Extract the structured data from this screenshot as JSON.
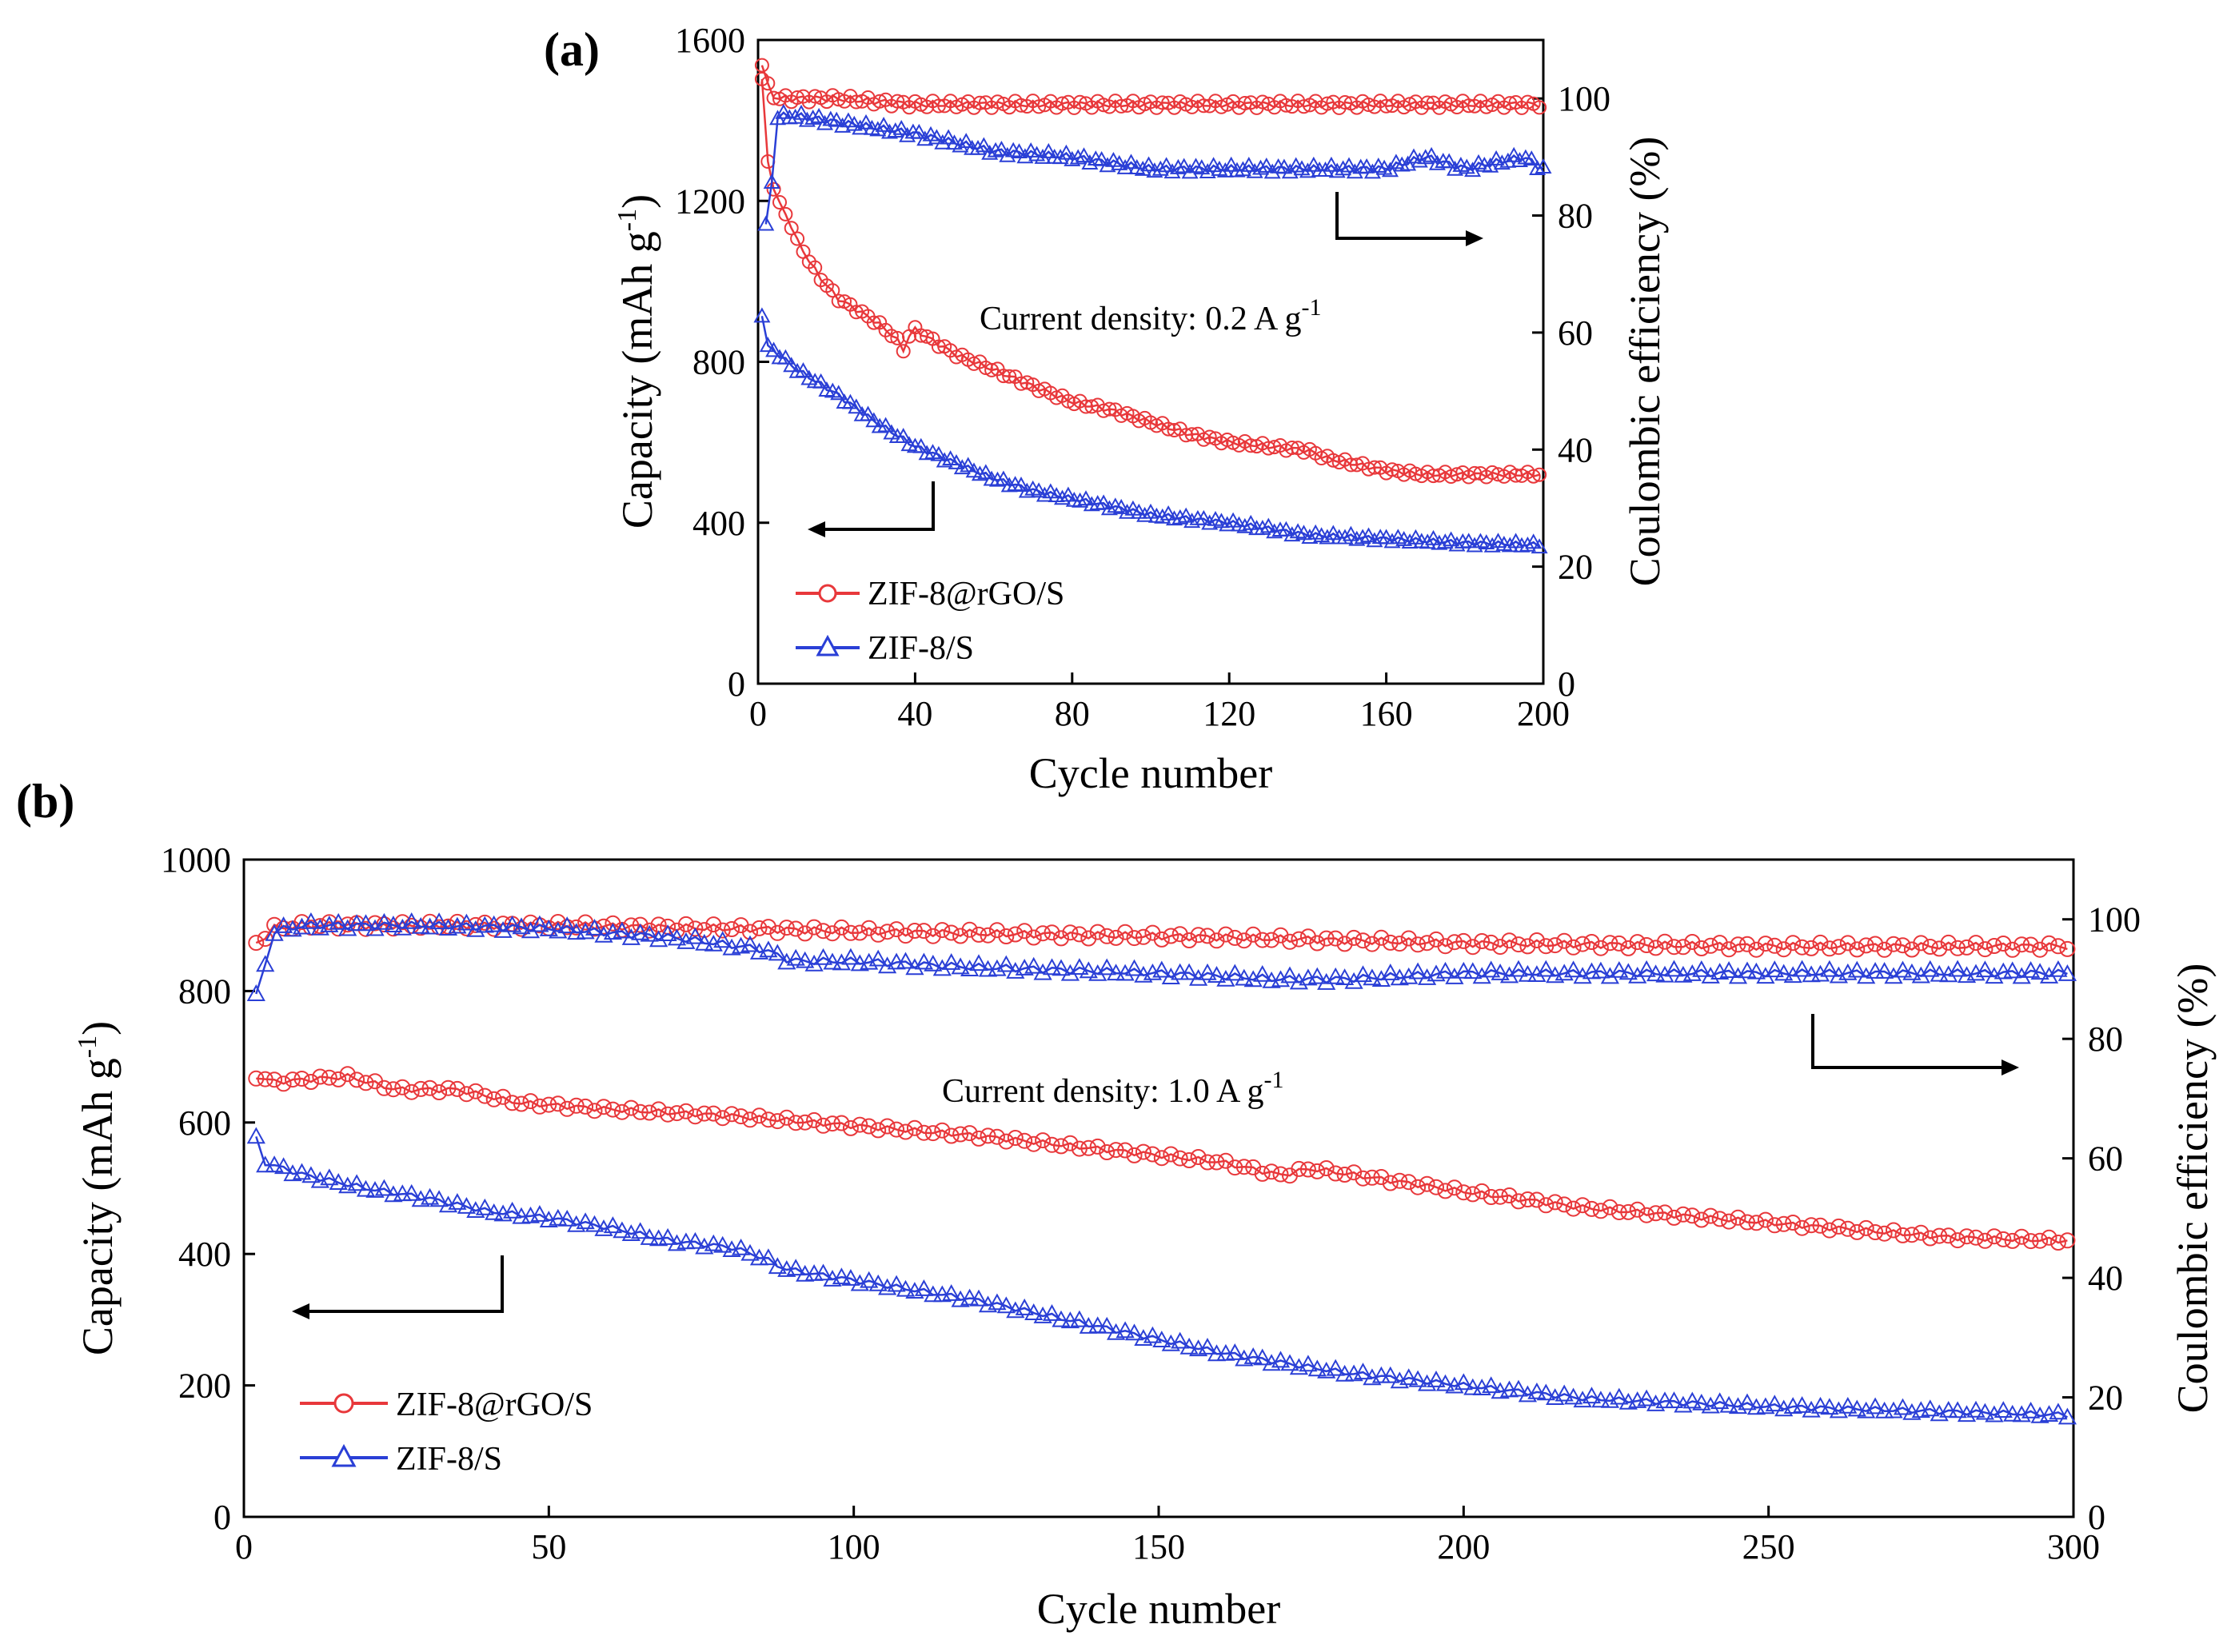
{
  "chart_data": [
    {
      "panel": "(a)",
      "type": "scatter",
      "xlabel": "Cycle number",
      "ylabel": "Capacity (mAh g",
      "ylabel_sup": "-1",
      "ylabel_end": ")",
      "y2label": "Coulombic efficiency (%)",
      "annotation": "Current density: 0.2 A g",
      "annotation_sup": "-1",
      "xlim": [
        0,
        200
      ],
      "ylim": [
        0,
        1600
      ],
      "y2lim": [
        0,
        110
      ],
      "xticks": [
        "0",
        "40",
        "80",
        "120",
        "160",
        "200"
      ],
      "yticks": [
        "0",
        "400",
        "800",
        "1200",
        "1600"
      ],
      "y2ticks": [
        "0",
        "20",
        "40",
        "60",
        "80",
        "100"
      ],
      "legend": [
        {
          "name": "ZIF-8@rGO/S",
          "color": "#e8383b",
          "marker": "circle"
        },
        {
          "name": "ZIF-8/S",
          "color": "#2a3fd6",
          "marker": "triangle"
        }
      ],
      "series": [
        {
          "name": "ZIF-8@rGO/S capacity",
          "axis": "left",
          "color": "#e8383b",
          "marker": "circle",
          "x": [
            1,
            2,
            3,
            5,
            8,
            10,
            15,
            20,
            25,
            30,
            35,
            37,
            38,
            40,
            50,
            60,
            70,
            80,
            90,
            100,
            110,
            120,
            130,
            140,
            145,
            150,
            160,
            170,
            180,
            190,
            200
          ],
          "y": [
            1500,
            1320,
            1270,
            1200,
            1150,
            1100,
            1020,
            960,
            930,
            900,
            860,
            830,
            860,
            880,
            820,
            780,
            740,
            700,
            680,
            650,
            620,
            600,
            590,
            580,
            560,
            550,
            530,
            520,
            520,
            520,
            520
          ]
        },
        {
          "name": "ZIF-8@rGO/S CE",
          "axis": "right",
          "color": "#e8383b",
          "marker": "circle",
          "x": [
            1,
            2,
            3,
            5,
            10,
            20,
            40,
            60,
            80,
            100,
            120,
            140,
            160,
            180,
            200
          ],
          "y": [
            106,
            103,
            101,
            100,
            100,
            100,
            99,
            99,
            99,
            99,
            99,
            99,
            99,
            99,
            99
          ]
        },
        {
          "name": "ZIF-8/S capacity",
          "axis": "left",
          "color": "#2a3fd6",
          "marker": "triangle",
          "x": [
            1,
            2,
            5,
            10,
            20,
            30,
            40,
            50,
            60,
            70,
            80,
            90,
            100,
            120,
            140,
            160,
            180,
            200
          ],
          "y": [
            920,
            840,
            820,
            780,
            720,
            650,
            590,
            550,
            510,
            480,
            460,
            440,
            420,
            400,
            370,
            360,
            350,
            345
          ]
        },
        {
          "name": "ZIF-8/S CE",
          "axis": "right",
          "color": "#2a3fd6",
          "marker": "triangle",
          "x": [
            2,
            3,
            5,
            10,
            20,
            40,
            60,
            80,
            100,
            120,
            140,
            160,
            170,
            180,
            195,
            200
          ],
          "y": [
            78,
            82,
            97,
            97,
            96,
            94,
            91,
            90,
            88,
            88,
            88,
            88,
            90,
            88,
            90,
            88
          ]
        }
      ]
    },
    {
      "panel": "(b)",
      "type": "scatter",
      "xlabel": "Cycle number",
      "ylabel": "Capacity (mAh g",
      "ylabel_sup": "-1",
      "ylabel_end": ")",
      "y2label": "Coulombic efficiency (%)",
      "annotation": "Current density: 1.0 A g",
      "annotation_sup": "-1",
      "xlim": [
        0,
        300
      ],
      "ylim": [
        0,
        1000
      ],
      "y2lim": [
        0,
        110
      ],
      "xticks": [
        "0",
        "50",
        "100",
        "150",
        "200",
        "250",
        "300"
      ],
      "yticks": [
        "0",
        "200",
        "400",
        "600",
        "800",
        "1000"
      ],
      "y2ticks": [
        "0",
        "20",
        "40",
        "60",
        "80",
        "100"
      ],
      "legend": [
        {
          "name": "ZIF-8@rGO/S",
          "color": "#e8383b",
          "marker": "circle"
        },
        {
          "name": "ZIF-8/S",
          "color": "#2a3fd6",
          "marker": "triangle"
        }
      ],
      "series": [
        {
          "name": "ZIF-8@rGO/S capacity",
          "axis": "left",
          "color": "#e8383b",
          "marker": "circle",
          "x": [
            2,
            5,
            10,
            17,
            25,
            35,
            45,
            60,
            80,
            100,
            120,
            140,
            160,
            170,
            175,
            200,
            220,
            240,
            260,
            280,
            300
          ],
          "y": [
            670,
            662,
            665,
            670,
            650,
            650,
            630,
            620,
            610,
            595,
            580,
            560,
            540,
            520,
            530,
            495,
            470,
            455,
            440,
            425,
            420
          ]
        },
        {
          "name": "ZIF-8@rGO/S CE",
          "axis": "right",
          "color": "#e8383b",
          "marker": "circle",
          "x": [
            2,
            5,
            10,
            30,
            50,
            80,
            100,
            130,
            160,
            200,
            250,
            300
          ],
          "y": [
            96,
            98.5,
            99,
            99,
            99,
            98.5,
            98,
            97.5,
            97,
            96,
            95.5,
            95.5
          ]
        },
        {
          "name": "ZIF-8/S capacity",
          "axis": "left",
          "color": "#2a3fd6",
          "marker": "triangle",
          "x": [
            2,
            3,
            10,
            20,
            30,
            40,
            50,
            60,
            70,
            80,
            85,
            88,
            90,
            100,
            120,
            140,
            160,
            180,
            200,
            220,
            250,
            280,
            300
          ],
          "y": [
            575,
            540,
            520,
            500,
            485,
            465,
            455,
            440,
            420,
            410,
            395,
            380,
            375,
            360,
            330,
            290,
            250,
            220,
            200,
            180,
            168,
            160,
            155
          ]
        },
        {
          "name": "ZIF-8/S CE",
          "axis": "right",
          "color": "#2a3fd6",
          "marker": "triangle",
          "x": [
            2,
            5,
            10,
            30,
            50,
            70,
            85,
            90,
            100,
            120,
            150,
            170,
            180,
            200,
            250,
            300
          ],
          "y": [
            87,
            98,
            99,
            99,
            98.5,
            97,
            95,
            93,
            93,
            92,
            91,
            90,
            90,
            91,
            91,
            91
          ]
        }
      ]
    }
  ]
}
